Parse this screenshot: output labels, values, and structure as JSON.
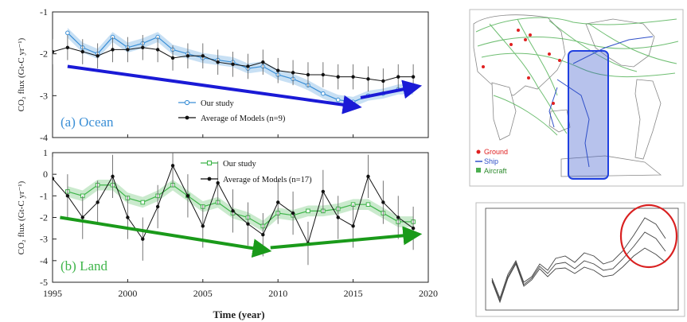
{
  "colors": {
    "ocean": "#3b8fd6",
    "land": "#3fb54a",
    "arrow_ocean": "#1a1ad6",
    "arrow_land": "#1a9a1a",
    "models": "#111111",
    "highlight": "#d92020"
  },
  "x_axis": {
    "label": "Time (year)",
    "ticks": [
      "1995",
      "2000",
      "2005",
      "2010",
      "2015",
      "2020"
    ]
  },
  "ocean_panel": {
    "ylabel": "CO₂ flux (Gt-C yr⁻¹)",
    "yticks": [
      "-1",
      "-2",
      "-3",
      "-4"
    ],
    "panel_label": "(a) Ocean",
    "legend_study": "Our study",
    "legend_models": "Average of Models (n=9)"
  },
  "land_panel": {
    "ylabel": "CO₂ flux (Gt-C yr⁻¹)",
    "yticks": [
      "1",
      "0",
      "-1",
      "-2",
      "-3",
      "-4",
      "-5"
    ],
    "panel_label": "(b) Land",
    "legend_study": "Our study",
    "legend_models": "Average of Models (n=17)"
  },
  "map_legend": {
    "ground": "Ground",
    "ship": "Ship",
    "aircraft": "Aircraft"
  },
  "chart_data": [
    {
      "type": "line",
      "panel": "ocean",
      "ylabel": "CO₂ flux (Gt-C yr⁻¹)",
      "xlabel": "Time (year)",
      "xlim": [
        1995,
        2020
      ],
      "ylim": [
        -4,
        -1
      ],
      "series": [
        {
          "name": "Our study",
          "x": [
            1996,
            1997,
            1998,
            1999,
            2000,
            2001,
            2002,
            2003,
            2004,
            2005,
            2006,
            2007,
            2008,
            2009,
            2010,
            2011,
            2012,
            2013,
            2014,
            2015,
            2016,
            2017,
            2018,
            2019
          ],
          "y": [
            -1.5,
            -1.85,
            -2.0,
            -1.6,
            -1.85,
            -1.75,
            -1.6,
            -1.9,
            -2.0,
            -2.1,
            -2.15,
            -2.2,
            -2.35,
            -2.3,
            -2.5,
            -2.6,
            -2.75,
            -2.95,
            -3.1,
            -3.15,
            -3.0,
            -2.95,
            -2.85,
            -2.85
          ]
        },
        {
          "name": "Average of Models (n=9)",
          "x": [
            1995,
            1996,
            1997,
            1998,
            1999,
            2000,
            2001,
            2002,
            2003,
            2004,
            2005,
            2006,
            2007,
            2008,
            2009,
            2010,
            2011,
            2012,
            2013,
            2014,
            2015,
            2016,
            2017,
            2018,
            2019
          ],
          "y": [
            -1.95,
            -1.85,
            -1.95,
            -2.05,
            -1.9,
            -1.9,
            -1.85,
            -1.9,
            -2.1,
            -2.05,
            -2.05,
            -2.2,
            -2.25,
            -2.3,
            -2.2,
            -2.4,
            -2.45,
            -2.5,
            -2.5,
            -2.55,
            -2.55,
            -2.6,
            -2.65,
            -2.55,
            -2.55
          ]
        }
      ],
      "trend_arrows": [
        {
          "from": [
            1996,
            -2.3
          ],
          "to": [
            2015,
            -3.25
          ]
        },
        {
          "from": [
            2015.5,
            -3.05
          ],
          "to": [
            2019,
            -2.8
          ]
        }
      ]
    },
    {
      "type": "line",
      "panel": "land",
      "ylabel": "CO₂ flux (Gt-C yr⁻¹)",
      "xlabel": "Time (year)",
      "xlim": [
        1995,
        2020
      ],
      "ylim": [
        -5,
        1
      ],
      "series": [
        {
          "name": "Our study",
          "x": [
            1996,
            1997,
            1998,
            1999,
            2000,
            2001,
            2002,
            2003,
            2004,
            2005,
            2006,
            2007,
            2008,
            2009,
            2010,
            2011,
            2012,
            2013,
            2014,
            2015,
            2016,
            2017,
            2018,
            2019
          ],
          "y": [
            -0.8,
            -1.0,
            -0.5,
            -0.5,
            -1.1,
            -1.3,
            -1.0,
            -0.5,
            -1.0,
            -1.5,
            -1.3,
            -1.8,
            -2.0,
            -2.4,
            -1.8,
            -1.9,
            -1.7,
            -1.7,
            -1.6,
            -1.4,
            -1.4,
            -1.8,
            -2.2,
            -2.2
          ]
        },
        {
          "name": "Average of Models (n=17)",
          "x": [
            1995,
            1996,
            1997,
            1998,
            1999,
            2000,
            2001,
            2002,
            2003,
            2004,
            2005,
            2006,
            2007,
            2008,
            2009,
            2010,
            2011,
            2012,
            2013,
            2014,
            2015,
            2016,
            2017,
            2018,
            2019
          ],
          "y": [
            -0.2,
            -1.0,
            -2.0,
            -1.3,
            -0.1,
            -2.0,
            -3.0,
            -1.5,
            0.4,
            -1.0,
            -2.4,
            -0.4,
            -1.7,
            -2.3,
            -2.8,
            -1.3,
            -1.8,
            -3.2,
            -0.8,
            -2.0,
            -2.4,
            -0.1,
            -1.3,
            -2.0,
            -2.5
          ]
        }
      ],
      "trend_arrows": [
        {
          "from": [
            1995.5,
            -2.0
          ],
          "to": [
            2009,
            -3.5
          ]
        },
        {
          "from": [
            2009.5,
            -3.4
          ],
          "to": [
            2019,
            -2.8
          ]
        }
      ]
    }
  ]
}
